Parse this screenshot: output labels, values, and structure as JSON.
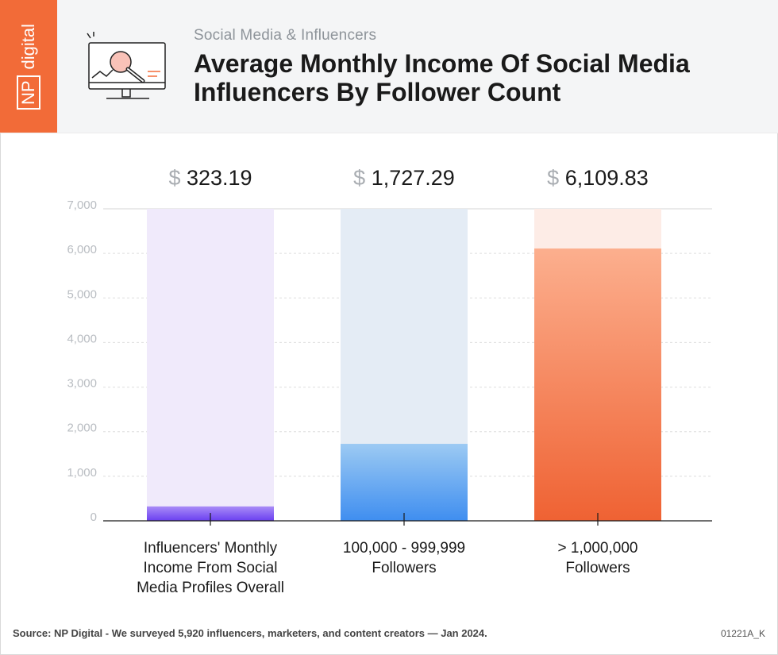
{
  "header": {
    "logo_np": "NP",
    "logo_digital": "digital",
    "subtitle": "Social Media & Influencers",
    "title": "Average Monthly Income Of Social Media Influencers By Follower Count"
  },
  "footer": {
    "source": "Source: NP Digital - We surveyed 5,920 influencers, marketers, and content creators — Jan 2024.",
    "code": "01221A_K"
  },
  "colors": {
    "brand": "#f26b38",
    "bar1_bg": "#f0eafb",
    "bar1_top": "#a98cf7",
    "bar1_bottom": "#6a3ff0",
    "bar2_bg": "#e4ecf5",
    "bar2_top": "#9ccaf3",
    "bar2_bottom": "#3f8ef0",
    "bar3_bg": "#fdece6",
    "bar3_top": "#fcaf8e",
    "bar3_bottom": "#ef6233"
  },
  "chart_data": {
    "type": "bar",
    "title": "Average Monthly Income Of Social Media Influencers By Follower Count",
    "categories": [
      [
        "Influencers' Monthly",
        "Income From Social",
        "Media Profiles Overall"
      ],
      [
        "100,000 - 999,999",
        "Followers"
      ],
      [
        "> 1,000,000",
        "Followers"
      ]
    ],
    "values": [
      323.19,
      1727.29,
      6109.83
    ],
    "value_labels": [
      "323.19",
      "1,727.29",
      "6,109.83"
    ],
    "currency_symbol": "$",
    "ylim": [
      0,
      7000
    ],
    "yticks": [
      0,
      1000,
      2000,
      3000,
      4000,
      5000,
      6000,
      7000
    ],
    "ytick_labels": [
      "0",
      "1,000",
      "2,000",
      "3,000",
      "4,000",
      "5,000",
      "6,000",
      "7,000"
    ],
    "xlabel": "",
    "ylabel": "",
    "grid": true
  }
}
